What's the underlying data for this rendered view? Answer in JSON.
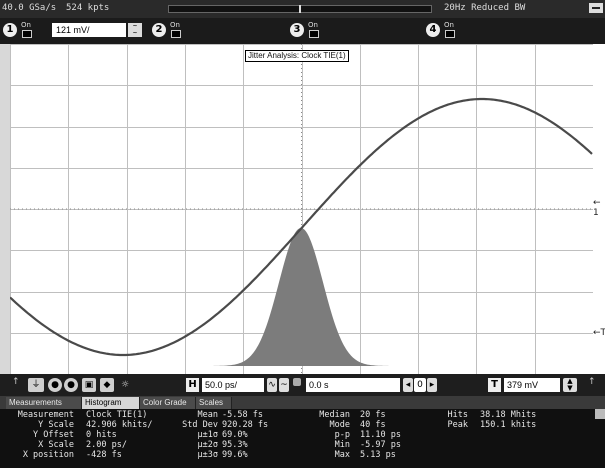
{
  "topbar": {
    "sample_rate": "40.0 GSa/s",
    "points": "524 kpts",
    "bandwidth": "20Hz Reduced BW"
  },
  "channels": [
    {
      "num": "1",
      "state": "On",
      "scale": "121 mV/"
    },
    {
      "num": "2",
      "state": "On"
    },
    {
      "num": "3",
      "state": "On"
    },
    {
      "num": "4",
      "state": "On"
    }
  ],
  "screen": {
    "jitter_title": "Jitter Analysis: Clock TIE(1)",
    "trigger_marker": "←T",
    "level_marker": "← 1"
  },
  "controls": {
    "h_label": "H",
    "timebase": "50.0 ps/",
    "delay": "0.0 s",
    "t_label": "T",
    "trigger_level": "379 mV",
    "zero": "0"
  },
  "tabs": [
    "Measurements",
    "Histogram",
    "Color Grade",
    "Scales"
  ],
  "measurements": {
    "rows": [
      {
        "label": "Measurement",
        "value": "Clock TIE(1)"
      },
      {
        "label": "Y Scale",
        "value": "42.906 khits/"
      },
      {
        "label": "Y Offset",
        "value": "0 hits"
      },
      {
        "label": "X Scale",
        "value": "2.00 ps/"
      },
      {
        "label": "X position",
        "value": "-428 fs"
      }
    ],
    "stats1": [
      {
        "label": "Mean",
        "value": "-5.58 fs"
      },
      {
        "label": "Std Dev",
        "value": "920.28 fs"
      },
      {
        "label": "μ±1σ",
        "value": "69.0%"
      },
      {
        "label": "μ±2σ",
        "value": "95.3%"
      },
      {
        "label": "μ±3σ",
        "value": "99.6%"
      }
    ],
    "stats2": [
      {
        "label": "Median",
        "value": "20 fs"
      },
      {
        "label": "Mode",
        "value": "40 fs"
      },
      {
        "label": "p-p",
        "value": "11.10 ps"
      },
      {
        "label": "Min",
        "value": "-5.97 ps"
      },
      {
        "label": "Max",
        "value": "5.13 ps"
      }
    ],
    "stats3": [
      {
        "label": "Hits",
        "value": "38.18 Mhits"
      },
      {
        "label": "Peak",
        "value": "150.1 khits"
      }
    ]
  },
  "colors": {
    "waveform": "#4a4a4a",
    "histogram": "#7c7c7c",
    "grid": "#bfbfbf",
    "background": "#ffffff"
  }
}
